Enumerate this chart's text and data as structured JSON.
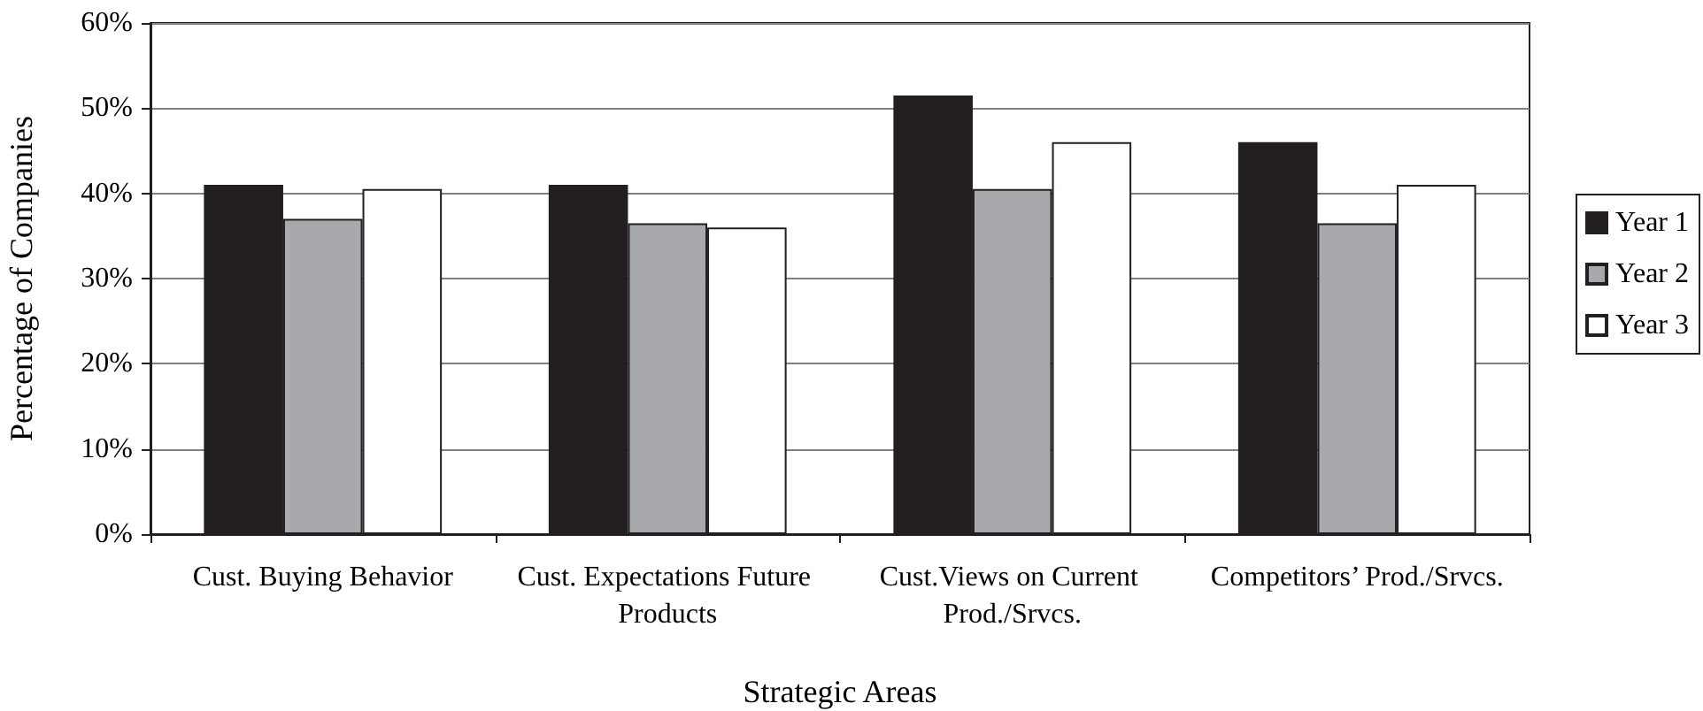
{
  "chart_data": {
    "type": "bar",
    "xlabel": "Strategic Areas",
    "ylabel": "Percentage of Companies",
    "categories": [
      "Cust. Buying Behavior",
      "Cust. Expectations Future Products",
      "Cust.Views on Current Prod./Srvcs.",
      "Competitors’ Prod./Srvcs."
    ],
    "series": [
      {
        "name": "Year 1",
        "color": "#231f20",
        "values": [
          41,
          41,
          51.5,
          46
        ]
      },
      {
        "name": "Year 2",
        "color": "#a7a9ac",
        "values": [
          37,
          36.5,
          40.5,
          36.5
        ]
      },
      {
        "name": "Year 3",
        "color": "#ffffff",
        "values": [
          40.5,
          36,
          46,
          41
        ]
      }
    ],
    "ylim": [
      0,
      60
    ],
    "yticks": [
      {
        "value": 0,
        "label": "0%"
      },
      {
        "value": 10,
        "label": "10%"
      },
      {
        "value": 20,
        "label": "20%"
      },
      {
        "value": 30,
        "label": "30%"
      },
      {
        "value": 40,
        "label": "40%"
      },
      {
        "value": 50,
        "label": "50%"
      },
      {
        "value": 60,
        "label": "60%"
      }
    ],
    "grid": "y",
    "legend": "right"
  }
}
